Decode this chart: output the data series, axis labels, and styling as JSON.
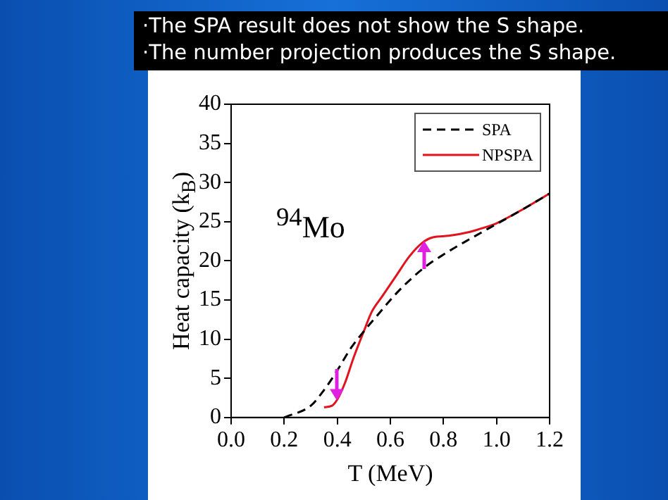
{
  "chart_data": {
    "type": "line",
    "xlabel": "T (MeV)",
    "ylabel": "Heat capacity (k$_{B}$)",
    "annotations": [
      "·The SPA result does not show the S shape.",
      "·The number projection produces the S shape.",
      "$^{94}$Mo"
    ],
    "xlim": [
      0,
      1.2
    ],
    "xticks": [
      {
        "value": 0,
        "label": "0.0"
      },
      0.2,
      0.4,
      0.6,
      0.8,
      {
        "value": 1,
        "label": "1.0"
      },
      1.2
    ],
    "ylim": [
      0,
      40
    ],
    "yticks": [
      0,
      5,
      10,
      15,
      20,
      25,
      30,
      35,
      40
    ],
    "legend": "top right",
    "grid": false,
    "series": [
      {
        "name": "SPA",
        "color": "#000000",
        "line_style": "dashed",
        "x": [
          0.2,
          0.3,
          0.35,
          0.4,
          0.45,
          0.5,
          0.55,
          0.6,
          0.65,
          0.73,
          0.8,
          0.9,
          1.0,
          1.1,
          1.2
        ],
        "values": [
          0,
          1.5,
          3.5,
          6,
          8.8,
          11,
          13,
          15,
          16.8,
          19.2,
          20.8,
          22.8,
          24.7,
          26.6,
          28.6
        ]
      },
      {
        "name": "NPSPA",
        "color": "#e0141e",
        "line_style": "solid",
        "x": [
          0.35,
          0.38,
          0.4,
          0.43,
          0.46,
          0.5,
          0.53,
          0.57,
          0.62,
          0.67,
          0.72,
          0.76,
          0.82,
          0.9,
          0.95,
          1.0,
          1.1,
          1.2
        ],
        "values": [
          1.3,
          1.5,
          2.3,
          4.5,
          7.5,
          11,
          13.5,
          15.5,
          18,
          20.5,
          22.3,
          23,
          23.2,
          23.7,
          24.2,
          24.8,
          26.6,
          28.6
        ]
      }
    ]
  }
}
